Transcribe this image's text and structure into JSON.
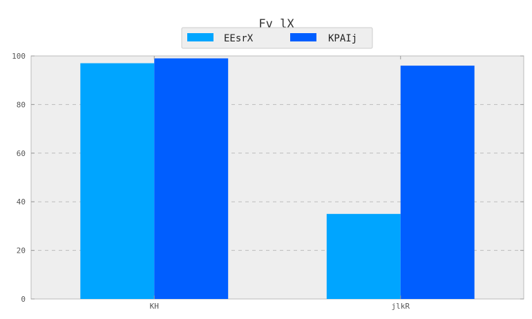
{
  "chart_data": {
    "type": "bar",
    "title": "Fv lX",
    "xlabel": "",
    "ylabel": "",
    "categories": [
      "KH",
      "jlkR"
    ],
    "series": [
      {
        "name": "EEsrX",
        "values": [
          97,
          35
        ],
        "color": "#00a5ff"
      },
      {
        "name": "KPAIj",
        "values": [
          99,
          96
        ],
        "color": "#005eff"
      }
    ],
    "ylim": [
      0,
      100
    ],
    "yticks": [
      0,
      20,
      40,
      60,
      80,
      100
    ],
    "grid": "horizontal-dashed",
    "legend_position": "top-center",
    "background": "#eeeeee"
  }
}
